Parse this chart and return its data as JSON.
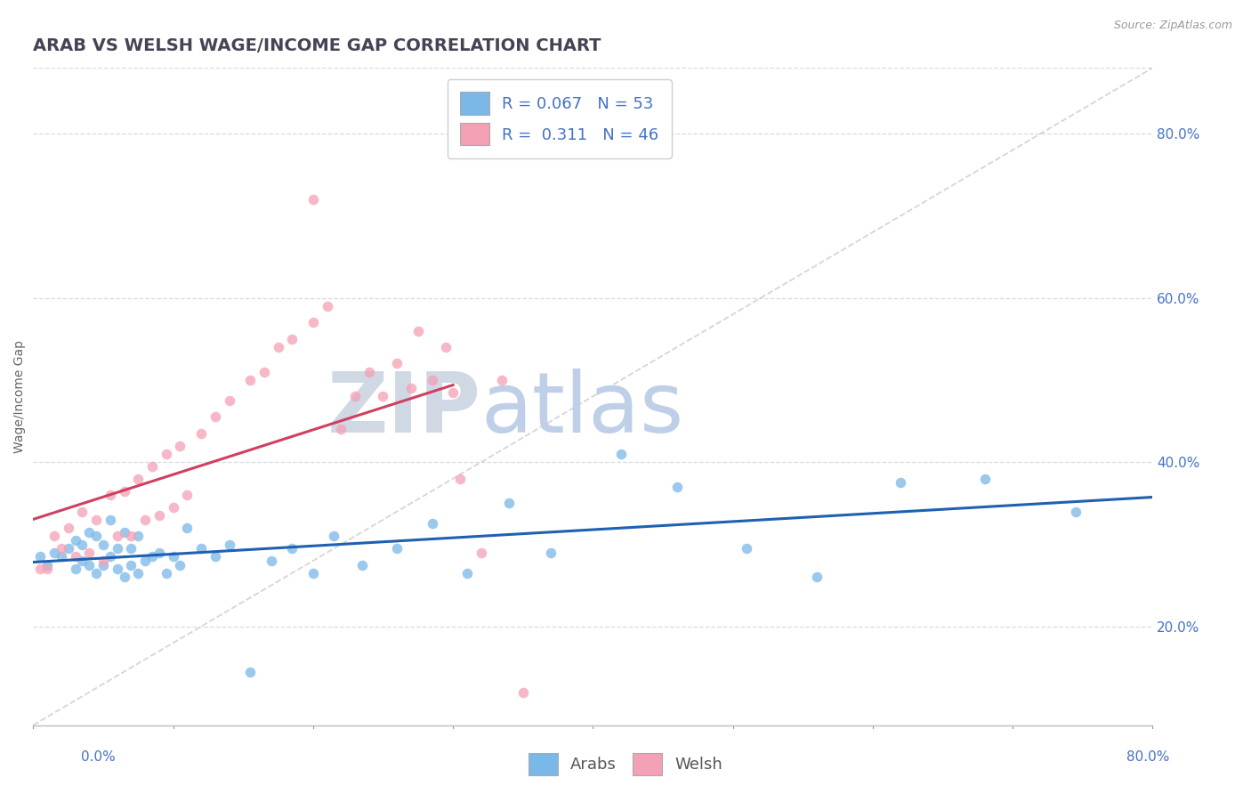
{
  "title": "ARAB VS WELSH WAGE/INCOME GAP CORRELATION CHART",
  "source_text": "Source: ZipAtlas.com",
  "ylabel": "Wage/Income Gap",
  "ylabel_right_ticks": [
    "20.0%",
    "40.0%",
    "60.0%",
    "80.0%"
  ],
  "ylabel_right_vals": [
    0.2,
    0.4,
    0.6,
    0.8
  ],
  "xlim": [
    0.0,
    0.8
  ],
  "ylim": [
    0.08,
    0.88
  ],
  "legend_blue_label": "R = 0.067   N = 53",
  "legend_pink_label": "R =  0.311   N = 46",
  "arab_color": "#7ab8e8",
  "welsh_color": "#f4a0b5",
  "arab_line_color": "#2060b0",
  "welsh_line_color": "#d04060",
  "ref_line_color": "#c8c8c8",
  "watermark": "ZIPatlas",
  "watermark_color": "#d0ddf0",
  "arab_x": [
    0.005,
    0.01,
    0.015,
    0.02,
    0.025,
    0.03,
    0.03,
    0.035,
    0.035,
    0.04,
    0.04,
    0.045,
    0.045,
    0.05,
    0.05,
    0.055,
    0.055,
    0.06,
    0.06,
    0.065,
    0.065,
    0.07,
    0.07,
    0.075,
    0.075,
    0.08,
    0.085,
    0.09,
    0.095,
    0.1,
    0.105,
    0.11,
    0.12,
    0.13,
    0.14,
    0.155,
    0.17,
    0.185,
    0.2,
    0.215,
    0.235,
    0.26,
    0.285,
    0.31,
    0.34,
    0.37,
    0.42,
    0.46,
    0.51,
    0.56,
    0.62,
    0.68,
    0.745
  ],
  "arab_y": [
    0.285,
    0.275,
    0.29,
    0.285,
    0.295,
    0.27,
    0.305,
    0.28,
    0.3,
    0.275,
    0.315,
    0.265,
    0.31,
    0.275,
    0.3,
    0.285,
    0.33,
    0.27,
    0.295,
    0.26,
    0.315,
    0.275,
    0.295,
    0.265,
    0.31,
    0.28,
    0.285,
    0.29,
    0.265,
    0.285,
    0.275,
    0.32,
    0.295,
    0.285,
    0.3,
    0.145,
    0.28,
    0.295,
    0.265,
    0.31,
    0.275,
    0.295,
    0.325,
    0.265,
    0.35,
    0.29,
    0.41,
    0.37,
    0.295,
    0.26,
    0.375,
    0.38,
    0.34
  ],
  "welsh_x": [
    0.005,
    0.01,
    0.015,
    0.02,
    0.025,
    0.03,
    0.035,
    0.04,
    0.045,
    0.05,
    0.055,
    0.06,
    0.065,
    0.07,
    0.075,
    0.08,
    0.085,
    0.09,
    0.095,
    0.1,
    0.105,
    0.11,
    0.12,
    0.13,
    0.14,
    0.155,
    0.165,
    0.175,
    0.185,
    0.2,
    0.21,
    0.22,
    0.23,
    0.24,
    0.25,
    0.26,
    0.27,
    0.275,
    0.285,
    0.295,
    0.3,
    0.305,
    0.32,
    0.335,
    0.35,
    0.2
  ],
  "welsh_y": [
    0.27,
    0.27,
    0.31,
    0.295,
    0.32,
    0.285,
    0.34,
    0.29,
    0.33,
    0.28,
    0.36,
    0.31,
    0.365,
    0.31,
    0.38,
    0.33,
    0.395,
    0.335,
    0.41,
    0.345,
    0.42,
    0.36,
    0.435,
    0.455,
    0.475,
    0.5,
    0.51,
    0.54,
    0.55,
    0.57,
    0.59,
    0.44,
    0.48,
    0.51,
    0.48,
    0.52,
    0.49,
    0.56,
    0.5,
    0.54,
    0.485,
    0.38,
    0.29,
    0.5,
    0.12,
    0.72
  ],
  "title_fontsize": 14,
  "axis_label_fontsize": 10,
  "tick_fontsize": 11,
  "legend_fontsize": 13,
  "watermark_fontsize": 68,
  "background_color": "#ffffff",
  "grid_color": "#c8d4e8",
  "grid_style": "--",
  "grid_alpha": 0.8
}
